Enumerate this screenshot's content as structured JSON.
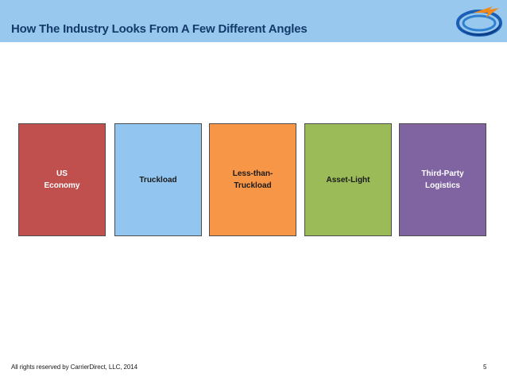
{
  "slide": {
    "title": "How The Industry Looks From A Few Different Angles",
    "footer": "All rights reserved by CarrierDirect, LLC, 2014",
    "page_number": "5"
  },
  "boxes": [
    {
      "label": "US\nEconomy",
      "color": "#c0504d",
      "text_color": "#ffffff"
    },
    {
      "label": "Truckload",
      "color": "#92c6f1",
      "text_color": "#1a1a1a"
    },
    {
      "label": "Less-than-\nTruckload",
      "color": "#f79646",
      "text_color": "#1a1a1a"
    },
    {
      "label": "Asset-Light",
      "color": "#9bbb59",
      "text_color": "#1a1a1a"
    },
    {
      "label": "Third-Party\nLogistics",
      "color": "#8064a2",
      "text_color": "#ffffff"
    }
  ],
  "colors": {
    "header_bg": "#99c8ee",
    "title_color": "#123a6b",
    "logo_icon": "swoosh-logo-icon"
  }
}
